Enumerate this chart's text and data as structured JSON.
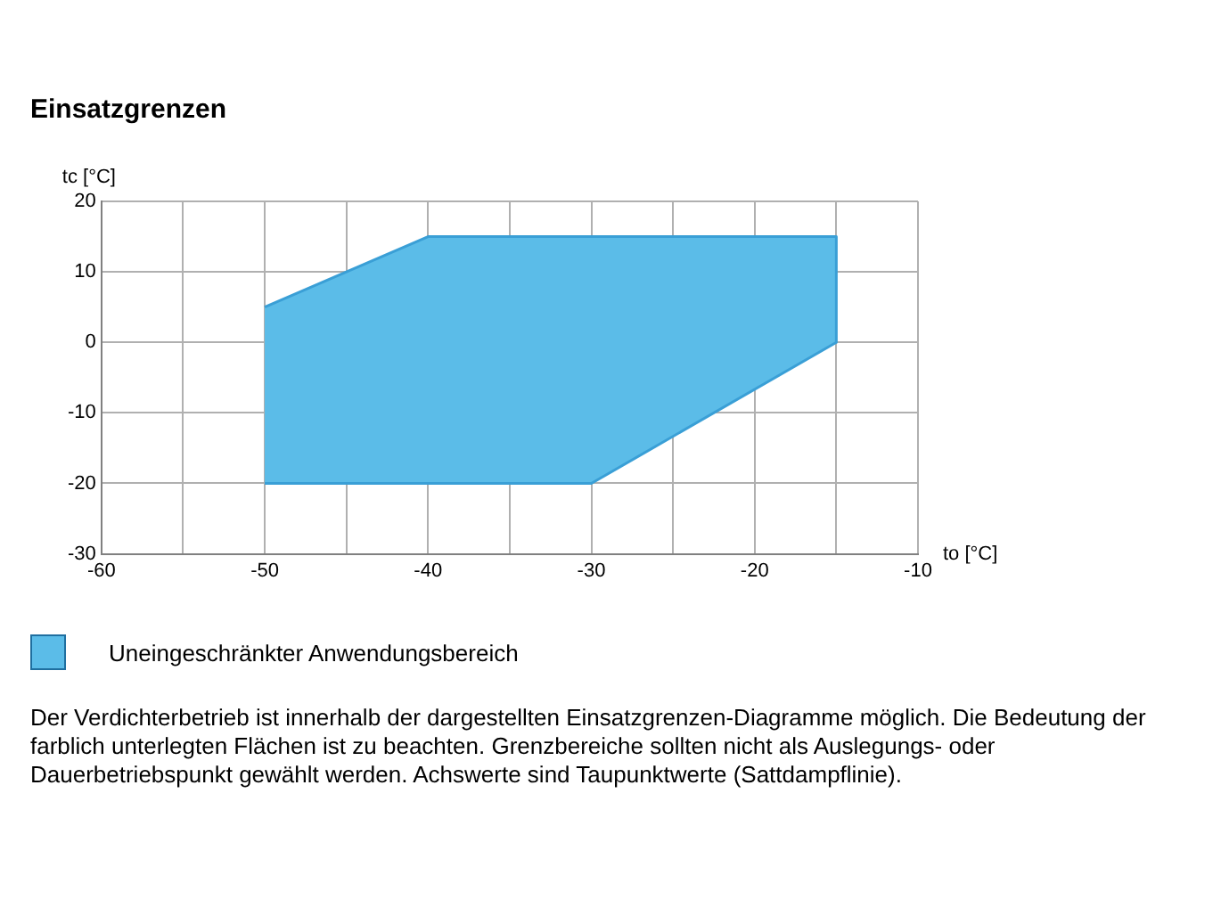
{
  "chart_data": {
    "type": "area",
    "title": "Einsatzgrenzen",
    "xlabel": "to [°C]",
    "ylabel": "tc [°C]",
    "series": [
      {
        "name": "Uneingeschränkter Anwendungsbereich",
        "color": "#5bbce8",
        "x": [
          -50,
          -40,
          -15,
          -15,
          -30,
          -50
        ],
        "values": [
          5,
          15,
          15,
          0,
          -20,
          -20
        ]
      }
    ],
    "xlim": [
      -60,
      -10
    ],
    "xticks": [
      -60,
      {
        "value": -55,
        "label": null
      },
      -50,
      {
        "value": -45,
        "label": null
      },
      -40,
      {
        "value": -35,
        "label": null
      },
      -30,
      {
        "value": -25,
        "label": null
      },
      -20,
      {
        "value": -15,
        "label": null
      },
      -10
    ],
    "ylim": [
      -30,
      20
    ],
    "yticks": [
      -30,
      -20,
      -10,
      0,
      10,
      20
    ],
    "grid": true,
    "legend": "bottom left",
    "annotations": [
      "Der Verdichterbetrieb ist innerhalb der dargestellten Einsatzgrenzen-Diagramme möglich. Die Bedeutung der farblich unterlegten Flächen ist zu beachten. Grenzbereiche sollten nicht als Auslegungs- oder Dauerbetriebspunkt gewählt werden. Achswerte sind Taupunktwerte (Sattdampflinie)."
    ]
  }
}
